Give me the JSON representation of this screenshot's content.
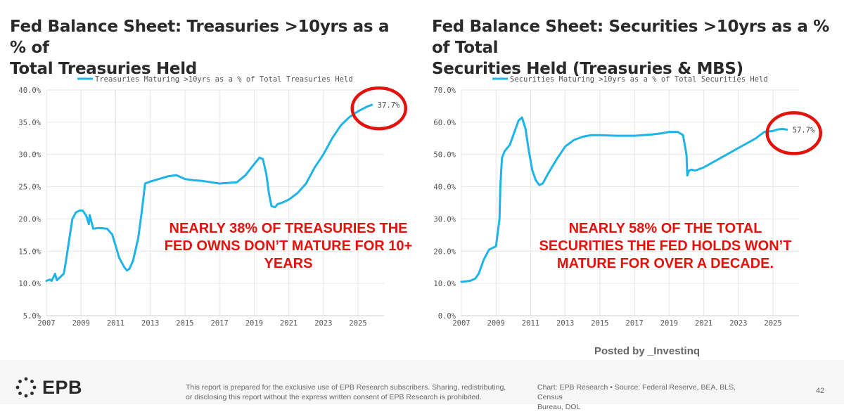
{
  "chart_data": [
    {
      "type": "line",
      "title_line1": "Fed Balance Sheet: Treasuries >10yrs as a % of",
      "title_line2": "Total Treasuries Held",
      "legend": "Treasuries Maturing >10yrs as a % of Total Treasuries Held",
      "xlabel": "",
      "ylabel": "",
      "xlim": [
        2007,
        2026.5
      ],
      "ylim": [
        5,
        40
      ],
      "x_ticks": [
        2007,
        2009,
        2011,
        2013,
        2015,
        2017,
        2019,
        2021,
        2023,
        2025
      ],
      "x_tick_labels": [
        "2007",
        "2009",
        "2011",
        "2013",
        "2015",
        "2017",
        "2019",
        "2021",
        "2023",
        "2025"
      ],
      "y_ticks": [
        5,
        10,
        15,
        20,
        25,
        30,
        35,
        40
      ],
      "y_tick_labels": [
        "5.0%",
        "10.0%",
        "15.0%",
        "20.0%",
        "25.0%",
        "30.0%",
        "35.0%",
        "40.0%"
      ],
      "grid": true,
      "last_value_label": "37.7%",
      "series": [
        {
          "name": "Treasuries Maturing >10yrs as a % of Total Treasuries Held",
          "color": "#1fb4e8",
          "x": [
            2007.0,
            2007.2,
            2007.3,
            2007.5,
            2007.6,
            2007.8,
            2008.0,
            2008.1,
            2008.3,
            2008.5,
            2008.7,
            2008.9,
            2009.1,
            2009.3,
            2009.45,
            2009.5,
            2009.7,
            2010.0,
            2010.5,
            2010.8,
            2011.0,
            2011.2,
            2011.5,
            2011.65,
            2011.8,
            2012.0,
            2012.3,
            2012.5,
            2012.7,
            2013.0,
            2013.5,
            2014.0,
            2014.5,
            2015.0,
            2015.5,
            2016.0,
            2016.5,
            2017.0,
            2017.5,
            2018.0,
            2018.5,
            2019.0,
            2019.3,
            2019.5,
            2019.7,
            2019.85,
            2020.0,
            2020.2,
            2020.35,
            2020.6,
            2021.0,
            2021.5,
            2022.0,
            2022.5,
            2023.0,
            2023.5,
            2024.0,
            2024.5,
            2025.0,
            2025.5,
            2025.8
          ],
          "y": [
            10.4,
            10.6,
            10.4,
            11.5,
            10.5,
            11.0,
            11.5,
            13.0,
            16.5,
            20.0,
            21.0,
            21.3,
            21.3,
            20.5,
            19.2,
            20.6,
            18.5,
            18.6,
            18.5,
            17.6,
            15.8,
            14.0,
            12.5,
            12.0,
            12.3,
            13.5,
            17.0,
            21.0,
            25.5,
            25.8,
            26.2,
            26.6,
            26.8,
            26.2,
            26.0,
            25.9,
            25.7,
            25.5,
            25.6,
            25.7,
            26.8,
            28.5,
            29.5,
            29.3,
            27.0,
            24.0,
            22.0,
            21.8,
            22.3,
            22.5,
            23.0,
            24.0,
            25.5,
            28.0,
            30.0,
            32.5,
            34.5,
            35.8,
            36.7,
            37.4,
            37.7
          ]
        }
      ]
    },
    {
      "type": "line",
      "title_line1": "Fed Balance Sheet: Securities >10yrs as a % of Total",
      "title_line2": "Securities Held (Treasuries & MBS)",
      "legend": "Securities Maturing >10yrs as a % of Total Securities Held",
      "xlabel": "",
      "ylabel": "",
      "xlim": [
        2007,
        2026.5
      ],
      "ylim": [
        0,
        70
      ],
      "x_ticks": [
        2007,
        2009,
        2011,
        2013,
        2015,
        2017,
        2019,
        2021,
        2023,
        2025
      ],
      "x_tick_labels": [
        "2007",
        "2009",
        "2011",
        "2013",
        "2015",
        "2017",
        "2019",
        "2021",
        "2023",
        "2025"
      ],
      "y_ticks": [
        0,
        10,
        20,
        30,
        40,
        50,
        60,
        70
      ],
      "y_tick_labels": [
        "0.0%",
        "10.0%",
        "20.0%",
        "30.0%",
        "40.0%",
        "50.0%",
        "60.0%",
        "70.0%"
      ],
      "grid": true,
      "last_value_label": "57.7%",
      "series": [
        {
          "name": "Securities Maturing >10yrs as a % of Total Securities Held",
          "color": "#1fb4e8",
          "x": [
            2007.0,
            2007.5,
            2007.8,
            2008.0,
            2008.3,
            2008.6,
            2008.8,
            2009.0,
            2009.2,
            2009.25,
            2009.3,
            2009.35,
            2009.5,
            2009.8,
            2010.0,
            2010.3,
            2010.5,
            2010.7,
            2010.9,
            2011.1,
            2011.3,
            2011.5,
            2011.7,
            2012.0,
            2012.5,
            2013.0,
            2013.5,
            2014.0,
            2014.5,
            2015.0,
            2016.0,
            2017.0,
            2018.0,
            2018.5,
            2019.0,
            2019.5,
            2019.8,
            2020.0,
            2020.05,
            2020.15,
            2020.3,
            2020.5,
            2021.0,
            2021.5,
            2022.0,
            2022.5,
            2023.0,
            2023.5,
            2024.0,
            2024.5,
            2025.0,
            2025.3,
            2025.6,
            2025.8
          ],
          "y": [
            10.5,
            10.8,
            11.5,
            13.0,
            17.5,
            20.5,
            21.0,
            21.5,
            30.0,
            40.0,
            45.0,
            49.0,
            51.0,
            53.0,
            56.0,
            60.5,
            61.5,
            58.0,
            51.0,
            45.0,
            42.0,
            40.5,
            41.0,
            44.0,
            48.5,
            52.5,
            54.5,
            55.5,
            56.0,
            56.0,
            55.8,
            55.8,
            56.2,
            56.5,
            57.0,
            57.0,
            56.0,
            50.0,
            43.5,
            45.0,
            45.3,
            45.0,
            46.0,
            47.5,
            49.0,
            50.5,
            52.0,
            53.5,
            55.0,
            57.0,
            57.3,
            57.8,
            57.9,
            57.7
          ]
        }
      ]
    }
  ],
  "annotations": {
    "left": [
      "NEARLY 38% OF TREASURIES THE",
      "FED OWNS DON’T MATURE FOR 10+",
      "YEARS"
    ],
    "right": [
      "NEARLY 58% OF THE TOTAL",
      "SECURITIES THE FED HOLDS WON’T",
      "MATURE FOR OVER A DECADE."
    ]
  },
  "posted_by": "Posted by _Investinq",
  "footer": {
    "logo": "EPB",
    "logo_icon": "dotted-circle-logo-icon",
    "disclaimer_line1": "This report is prepared for the exclusive use of EPB Research subscribers. Sharing, redistributing,",
    "disclaimer_line2": "or disclosing this report without the express written consent of EPB Research is prohibited.",
    "source_line1": "Chart: EPB Research  •  Source: Federal Reserve, BEA, BLS, Census",
    "source_line2": "Bureau, DOL",
    "page_number": "42"
  },
  "colors": {
    "line": "#1fb4e8",
    "annotation": "#e3120b",
    "highlight_circle": "#e3120b",
    "grid": "#e6e6e6"
  }
}
